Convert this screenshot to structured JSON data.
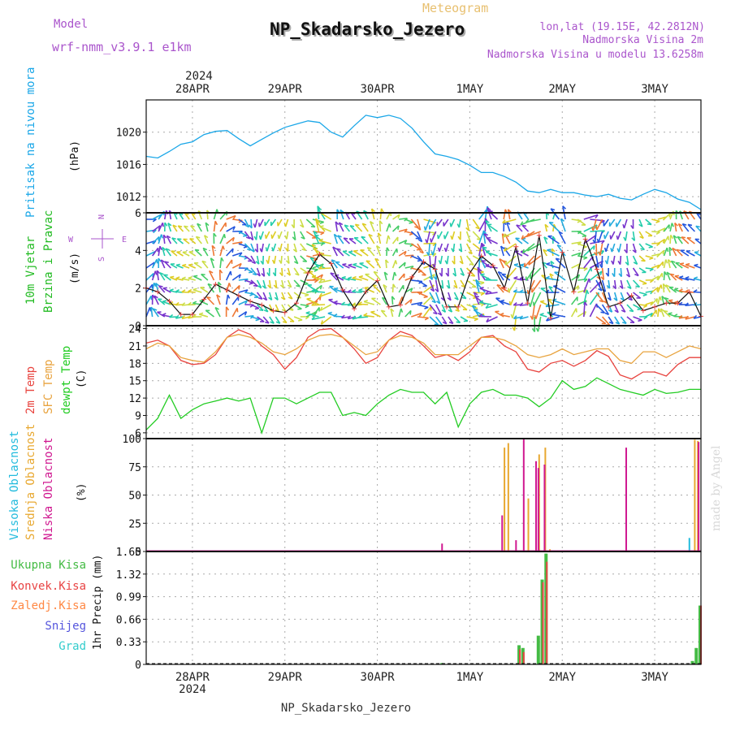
{
  "header": {
    "model_label": "Model",
    "model_name": "wrf-nmm_v3.9.1 e1km",
    "meteogram_label": "Meteogram",
    "station": "NP_Skadarsko_Jezero",
    "lonlat": "lon,lat (19.15E, 42.2812N)",
    "altitude": "Nadmorska Visina 2m",
    "model_altitude": "Nadmorska Visina u modelu 13.6258m",
    "footer_station": "NP_Skadarsko_Jezero",
    "credit": "made by Angel"
  },
  "time_axis": {
    "year": "2024",
    "days": [
      "28APR",
      "29APR",
      "30APR",
      "1MAY",
      "2MAY",
      "3MAY"
    ],
    "start_hour": 0,
    "end_hour": 144
  },
  "colors": {
    "pressure": "#1ba7e8",
    "temp2m": "#e8433e",
    "sfc_temp": "#e8a33e",
    "dewpt": "#22cc22",
    "high_cloud": "#22bbdd",
    "mid_cloud": "#e8a830",
    "low_cloud": "#d01890",
    "total_precip": "#44bb44",
    "conv_precip": "#e84444",
    "snow": "#5555dd",
    "grad": "#33cccc",
    "zaledj": "#ff8844",
    "wind_title": "#22bb22",
    "wind_dir": "#aa55cc"
  },
  "chart_data": [
    {
      "type": "line",
      "panel": "pressure",
      "ylabel_left": "Pritisak na nivou mora",
      "ylabel_unit": "(hPa)",
      "yticks": [
        1012,
        1016,
        1020
      ],
      "ylim": [
        1010,
        1024
      ],
      "series": [
        {
          "x": [
            0,
            3,
            6,
            9,
            12,
            15,
            18,
            21,
            24,
            27,
            30,
            33,
            36,
            39,
            42,
            45,
            48,
            51,
            54,
            57,
            60,
            63,
            66,
            69,
            72,
            75,
            78,
            81,
            84,
            87,
            90,
            93,
            96,
            99,
            102,
            105,
            108,
            111,
            114,
            117,
            120,
            123,
            126,
            129,
            132,
            135,
            138,
            141,
            144
          ],
          "values": [
            1017,
            1016.8,
            1017.6,
            1018.5,
            1018.8,
            1019.7,
            1020.1,
            1020.2,
            1019.2,
            1018.3,
            1019.1,
            1019.9,
            1020.6,
            1021.0,
            1021.4,
            1021.2,
            1020.0,
            1019.4,
            1020.8,
            1022.1,
            1021.8,
            1022.1,
            1021.7,
            1020.5,
            1018.8,
            1017.3,
            1017.0,
            1016.6,
            1015.9,
            1015.0,
            1015.0,
            1014.5,
            1013.8,
            1012.7,
            1012.5,
            1012.9,
            1012.5,
            1012.5,
            1012.2,
            1012.0,
            1012.3,
            1011.8,
            1011.6,
            1012.3,
            1012.9,
            1012.5,
            1011.7,
            1011.3,
            1010.4
          ]
        }
      ]
    },
    {
      "type": "line",
      "panel": "wind",
      "ylabel_left_1": "10m Vjetar",
      "ylabel_left_2": "Brzina i Pravac",
      "ylabel_unit": "(m/s)",
      "compass": {
        "n": "N",
        "s": "S",
        "e": "E",
        "w": "W"
      },
      "yticks": [
        0,
        2,
        4,
        6
      ],
      "ylim": [
        0,
        6
      ],
      "series": [
        {
          "x": [
            0,
            3,
            6,
            9,
            12,
            15,
            18,
            21,
            24,
            27,
            30,
            33,
            36,
            39,
            42,
            45,
            48,
            51,
            54,
            57,
            60,
            63,
            66,
            69,
            72,
            75,
            78,
            81,
            84,
            87,
            90,
            93,
            96,
            99,
            102,
            105,
            108,
            111,
            114,
            117,
            120,
            123,
            126,
            129,
            132,
            135,
            138,
            141,
            144
          ],
          "values": [
            2.0,
            1.8,
            1.3,
            0.6,
            0.6,
            1.4,
            2.2,
            1.9,
            1.6,
            1.3,
            1.1,
            0.8,
            0.7,
            1.2,
            2.8,
            3.8,
            3.3,
            1.9,
            0.9,
            1.8,
            2.4,
            1.0,
            1.1,
            2.6,
            3.4,
            3.0,
            1.0,
            1.0,
            2.8,
            3.7,
            3.2,
            2.0,
            4.2,
            1.2,
            4.8,
            0.4,
            3.9,
            1.8,
            4.6,
            3.0,
            1.0,
            1.2,
            1.6,
            0.8,
            1.0,
            1.2,
            1.2,
            1.8,
            0.5
          ]
        }
      ]
    },
    {
      "type": "line",
      "panel": "temperature",
      "ylabel_left_1": "2m Temp",
      "ylabel_left_2": "SFC Temp",
      "ylabel_left_3": "dewpt Temp",
      "ylabel_unit": "(C)",
      "yticks": [
        6,
        9,
        12,
        15,
        18,
        21,
        24
      ],
      "ylim": [
        5,
        24.5
      ],
      "series": [
        {
          "name": "2m Temp",
          "x": [
            0,
            3,
            6,
            9,
            12,
            15,
            18,
            21,
            24,
            27,
            30,
            33,
            36,
            39,
            42,
            45,
            48,
            51,
            54,
            57,
            60,
            63,
            66,
            69,
            72,
            75,
            78,
            81,
            84,
            87,
            90,
            93,
            96,
            99,
            102,
            105,
            108,
            111,
            114,
            117,
            120,
            123,
            126,
            129,
            132,
            135,
            138,
            141,
            144
          ],
          "values": [
            21.5,
            22,
            21,
            18.5,
            17.8,
            18,
            19.5,
            22.5,
            23.8,
            23,
            21,
            19.5,
            17,
            19,
            22.5,
            23.8,
            24,
            22.5,
            20.5,
            18,
            19,
            22,
            23.5,
            22.8,
            21,
            19,
            19.5,
            18.5,
            20,
            22.5,
            22.8,
            21,
            20,
            17,
            16.5,
            18,
            18.5,
            17.5,
            18.5,
            20.2,
            19.2,
            16,
            15.3,
            16.5,
            16.5,
            15.8,
            17.8,
            19,
            19
          ]
        },
        {
          "name": "SFC Temp",
          "x": [
            0,
            3,
            6,
            9,
            12,
            15,
            18,
            21,
            24,
            27,
            30,
            33,
            36,
            39,
            42,
            45,
            48,
            51,
            54,
            57,
            60,
            63,
            66,
            69,
            72,
            75,
            78,
            81,
            84,
            87,
            90,
            93,
            96,
            99,
            102,
            105,
            108,
            111,
            114,
            117,
            120,
            123,
            126,
            129,
            132,
            135,
            138,
            141,
            144
          ],
          "values": [
            20.5,
            21.5,
            21,
            19,
            18.5,
            18.2,
            20,
            22.5,
            23,
            22.5,
            21.5,
            20,
            19.5,
            20.5,
            22,
            22.8,
            23,
            22.5,
            21,
            19.5,
            20,
            22,
            22.8,
            22.5,
            21.5,
            19.5,
            19.5,
            19.5,
            21,
            22.5,
            22.5,
            22,
            21,
            19.5,
            19,
            19.5,
            20.5,
            19.5,
            20,
            20.5,
            20.5,
            18.5,
            18,
            20,
            20,
            19,
            20,
            21,
            20.5
          ]
        },
        {
          "name": "dewpt Temp",
          "x": [
            0,
            3,
            6,
            9,
            12,
            15,
            18,
            21,
            24,
            27,
            30,
            33,
            36,
            39,
            42,
            45,
            48,
            51,
            54,
            57,
            60,
            63,
            66,
            69,
            72,
            75,
            78,
            81,
            84,
            87,
            90,
            93,
            96,
            99,
            102,
            105,
            108,
            111,
            114,
            117,
            120,
            123,
            126,
            129,
            132,
            135,
            138,
            141,
            144
          ],
          "values": [
            6.5,
            8.5,
            12.5,
            8.5,
            10,
            11,
            11.5,
            12,
            11.5,
            12,
            6,
            12,
            12,
            11,
            12,
            13,
            13,
            9,
            9.5,
            9,
            11,
            12.5,
            13.5,
            13,
            13,
            11,
            13,
            7,
            11,
            13,
            13.5,
            12.5,
            12.5,
            12,
            10.5,
            12,
            15,
            13.5,
            14,
            15.5,
            14.5,
            13.5,
            13,
            12.5,
            13.5,
            12.8,
            13,
            13.5,
            13.5
          ]
        }
      ]
    },
    {
      "type": "bar",
      "panel": "cloud",
      "ylabel_left_1": "Visoka Oblacnost",
      "ylabel_left_2": "Srednja Oblacnost",
      "ylabel_left_3": "Niska Oblacnost",
      "ylabel_unit": "(%)",
      "yticks": [
        0,
        25,
        50,
        75,
        100
      ],
      "ylim": [
        0,
        100
      ],
      "series": [
        {
          "name": "Visoka Oblacnost",
          "x": [
            96,
            98,
            102,
            124,
            141
          ],
          "values": [
            0,
            0,
            2,
            0,
            12
          ]
        },
        {
          "name": "Srednja Oblacnost",
          "x": [
            93,
            94,
            96.6,
            99.2,
            102,
            103.6,
            104.8,
            142.4,
            143.2
          ],
          "values": [
            92,
            96,
            1,
            47,
            86,
            92,
            2,
            99,
            98
          ]
        },
        {
          "name": "Niska Oblacnost",
          "x": [
            76.8,
            92.4,
            96,
            98,
            101.2,
            101.8,
            103.4,
            124.6,
            143.4
          ],
          "values": [
            7,
            32,
            10,
            100,
            80,
            74,
            77,
            92,
            97
          ]
        }
      ]
    },
    {
      "type": "bar",
      "panel": "precip",
      "legend": [
        "Ukupna Kisa",
        "Konvek.Kisa",
        "Zaledj.Kisa",
        "Snijeg",
        "Grad"
      ],
      "ylabel_unit": "1hr Precip (mm)",
      "yticks": [
        0,
        0.33,
        0.66,
        0.99,
        1.32,
        1.65
      ],
      "ylim": [
        0,
        1.65
      ],
      "series": [
        {
          "name": "Ukupna Kisa",
          "x": [
            77,
            96,
            97,
            98,
            102,
            103,
            104,
            142,
            143,
            144
          ],
          "values": [
            0.02,
            0,
            0.28,
            0.24,
            0.42,
            1.24,
            1.62,
            0.05,
            0.24,
            0.86
          ]
        },
        {
          "name": "Konvek.Kisa",
          "x": [
            96,
            97,
            98,
            102,
            103,
            104,
            142,
            143,
            144
          ],
          "values": [
            0,
            0.22,
            0.18,
            0,
            1.2,
            1.5,
            0,
            0,
            0.86
          ]
        }
      ]
    }
  ]
}
